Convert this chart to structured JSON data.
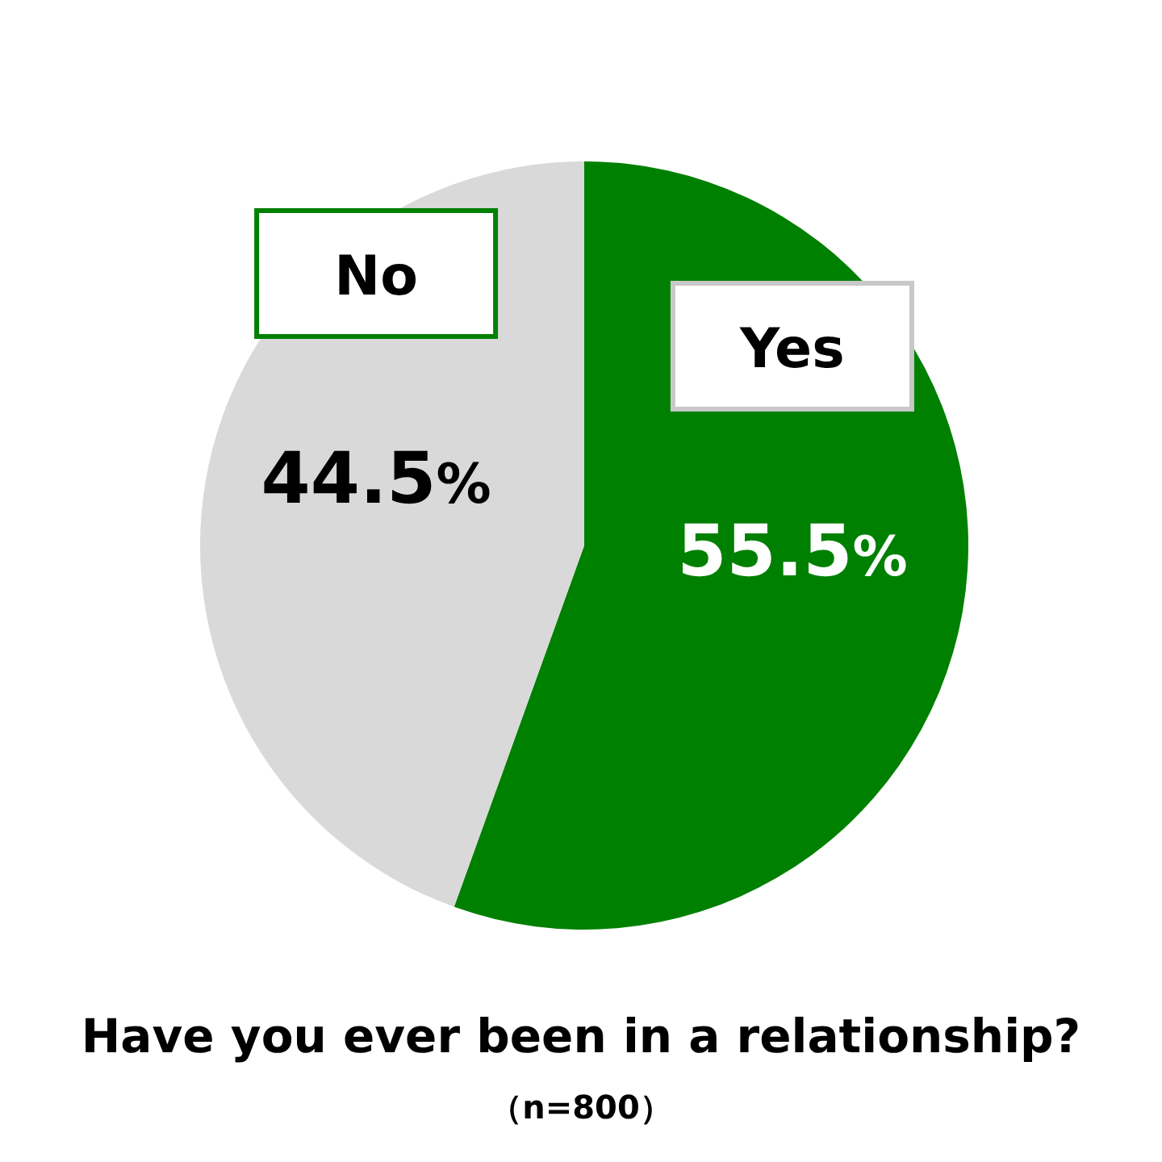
{
  "chart_data": {
    "type": "pie",
    "title": "Have you ever been in a relationship?",
    "annotations": [
      "（n=800）"
    ],
    "categories": [
      "Yes",
      "No"
    ],
    "values": [
      55.5,
      44.5
    ],
    "value_labels": [
      "55.5%",
      "44.5%"
    ],
    "colors": [
      "#008000",
      "#d9d9d9"
    ]
  }
}
